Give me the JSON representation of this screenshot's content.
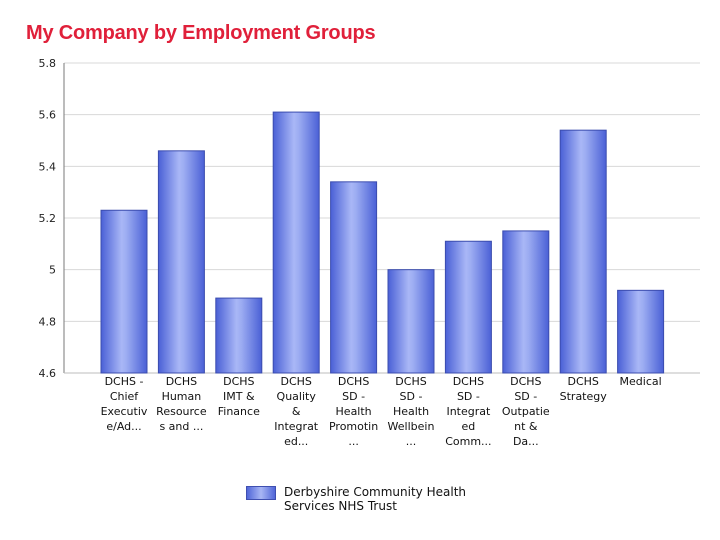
{
  "title": "My Company by Employment Groups",
  "chart_data": {
    "type": "bar",
    "title": "My Company by Employment Groups",
    "xlabel": "",
    "ylabel": "",
    "ylim": [
      4.6,
      5.8
    ],
    "yticks": [
      "4.6",
      "4.8",
      "5",
      "5.2",
      "5.4",
      "5.6",
      "5.8"
    ],
    "grid": true,
    "legend_position": "bottom",
    "categories": [
      [
        "DCHS -",
        "Chief",
        "Executiv",
        "e/Ad..."
      ],
      [
        "DCHS",
        "Human",
        "Resource",
        "s and ..."
      ],
      [
        "DCHS",
        "IMT &",
        "Finance"
      ],
      [
        "DCHS",
        "Quality",
        "&",
        "Integrat",
        "ed..."
      ],
      [
        "DCHS",
        "SD -",
        "Health",
        "Promotin",
        "..."
      ],
      [
        "DCHS",
        "SD -",
        "Health",
        "Wellbein",
        "..."
      ],
      [
        "DCHS",
        "SD -",
        "Integrat",
        "ed",
        "Comm..."
      ],
      [
        "DCHS",
        "SD -",
        "Outpatie",
        "nt &",
        "Da..."
      ],
      [
        "DCHS",
        "Strategy"
      ],
      [
        "Medical"
      ]
    ],
    "series": [
      {
        "name": "Derbyshire Community Health Services NHS Trust",
        "color": "#5a6fe0",
        "values": [
          5.23,
          5.46,
          4.89,
          5.61,
          5.34,
          5.0,
          5.11,
          5.15,
          5.54,
          4.92
        ]
      }
    ]
  },
  "legend": {
    "label": "Derbyshire Community Health Services NHS Trust"
  }
}
